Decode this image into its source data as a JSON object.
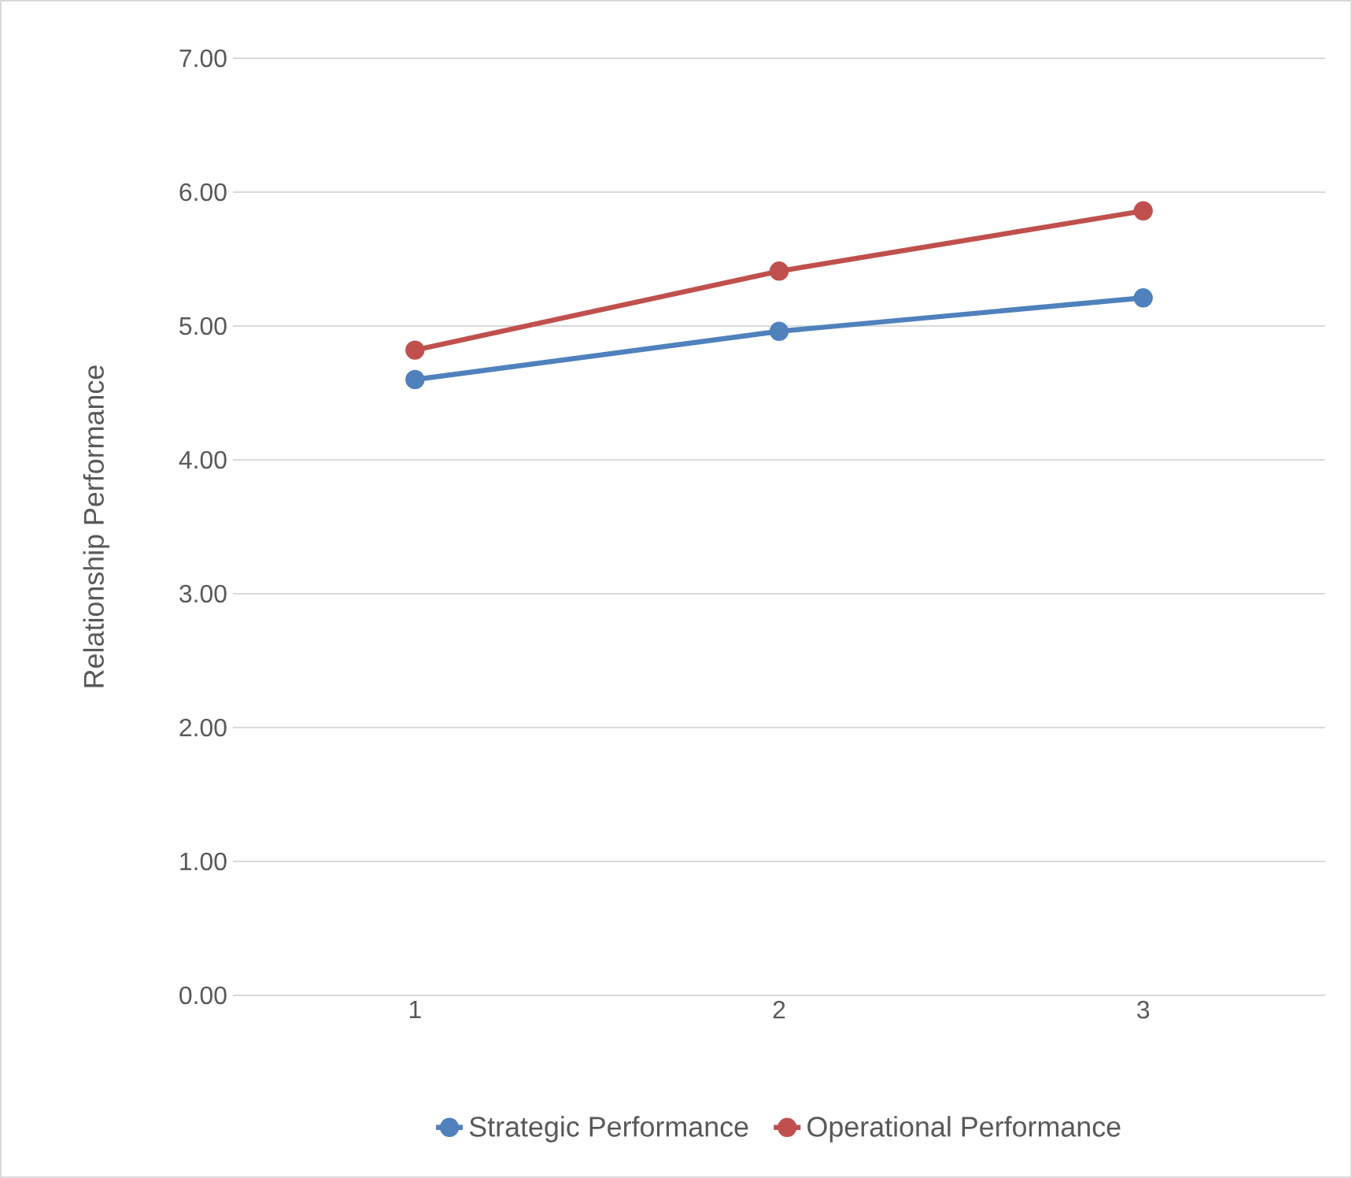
{
  "chart_data": {
    "type": "line",
    "ylabel": "Relationship Performance",
    "categories": [
      "1",
      "2",
      "3"
    ],
    "series": [
      {
        "name": "Strategic Performance",
        "color": "#4f81bd",
        "values": [
          4.6,
          4.96,
          5.21
        ]
      },
      {
        "name": "Operational Performance",
        "color": "#c0504d",
        "values": [
          4.82,
          5.41,
          5.86
        ]
      }
    ],
    "ylim": [
      0,
      7
    ],
    "yticks": [
      {
        "value": 0,
        "label": "0.00"
      },
      {
        "value": 1,
        "label": "1.00"
      },
      {
        "value": 2,
        "label": "2.00"
      },
      {
        "value": 3,
        "label": "3.00"
      },
      {
        "value": 4,
        "label": "4.00"
      },
      {
        "value": 5,
        "label": "5.00"
      },
      {
        "value": 6,
        "label": "6.00"
      },
      {
        "value": 7,
        "label": "7.00"
      }
    ],
    "grid": "y",
    "legend": "bottom",
    "marker": "circle",
    "line_style": "solid"
  }
}
